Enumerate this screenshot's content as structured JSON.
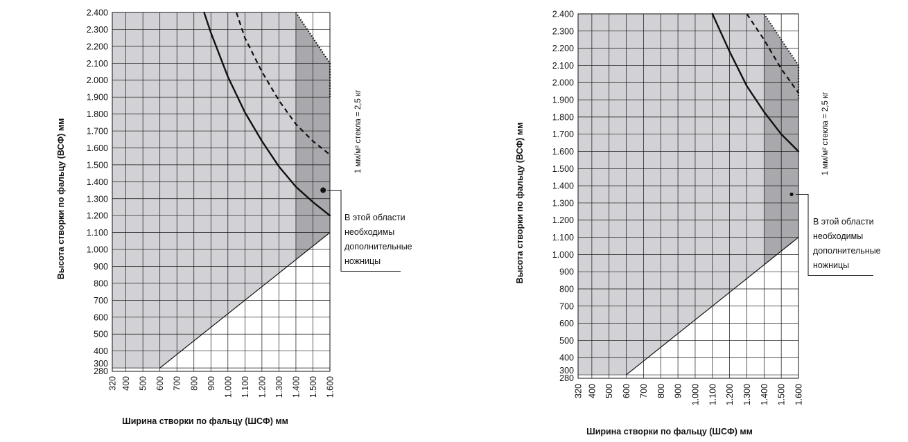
{
  "colors": {
    "allowed_area": "#d2d2d6",
    "extra_scissors_area": "#a9a9ad",
    "grid": "#111111",
    "curve": "#111111"
  },
  "chart_data": [
    {
      "type": "area",
      "title": "",
      "xlabel": "Ширина створки по фальцу (ШСФ) мм",
      "ylabel": "Высота створки по фальцу (ВСФ) мм",
      "x_ticks": [
        320,
        400,
        500,
        600,
        700,
        800,
        900,
        1000,
        1100,
        1200,
        1300,
        1400,
        1500,
        1600
      ],
      "x_tick_labels": [
        "320",
        "400",
        "500",
        "600",
        "700",
        "800",
        "900",
        "1.000",
        "1.100",
        "1.200",
        "1.300",
        "1.400",
        "1.500",
        "1.600"
      ],
      "y_ticks": [
        280,
        300,
        400,
        500,
        600,
        700,
        800,
        900,
        1000,
        1100,
        1200,
        1300,
        1400,
        1500,
        1600,
        1700,
        1800,
        1900,
        2000,
        2100,
        2200,
        2300,
        2400
      ],
      "y_tick_labels": [
        "280",
        "300",
        "400",
        "500",
        "600",
        "700",
        "800",
        "900",
        "1.000",
        "1.100",
        "1.200",
        "1.300",
        "1.400",
        "1.500",
        "1.600",
        "1.700",
        "1.800",
        "1.900",
        "2.000",
        "2.100",
        "2.200",
        "2.300",
        "2.400"
      ],
      "xlim": [
        320,
        1600
      ],
      "ylim": [
        280,
        2400
      ],
      "grid": true,
      "lower_boundary": {
        "x": [
          320,
          600,
          1600
        ],
        "y": [
          300,
          300,
          1100
        ]
      },
      "allowed_area_top": {
        "x": [
          320,
          1400,
          1600
        ],
        "y": [
          2400,
          2400,
          2100
        ]
      },
      "extra_scissors_zone": {
        "x_from": 1400,
        "x_to": 1600
      },
      "series": [
        {
          "style": "solid",
          "x": [
            860,
            900,
            1000,
            1100,
            1200,
            1300,
            1400,
            1500,
            1600
          ],
          "y": [
            2400,
            2280,
            2020,
            1810,
            1640,
            1490,
            1370,
            1280,
            1200
          ]
        },
        {
          "style": "dashed",
          "x": [
            1050,
            1100,
            1200,
            1300,
            1400,
            1500,
            1600
          ],
          "y": [
            2400,
            2250,
            2050,
            1880,
            1740,
            1640,
            1560
          ]
        },
        {
          "style": "dotted",
          "x": [
            1400,
            1600,
            1600
          ],
          "y": [
            2400,
            2100,
            1900
          ]
        }
      ],
      "marker": {
        "x": [
          1560
        ],
        "y": [
          1350
        ]
      },
      "weight_label": "1 мм/м² стекла = 2,5 кг",
      "annotation": [
        "В этой области",
        "необходимы",
        "дополнительные",
        "ножницы"
      ]
    },
    {
      "type": "area",
      "title": "",
      "xlabel": "Ширина створки по фальцу (ШСФ) мм",
      "ylabel": "Высота створки по фальцу (ВСФ) мм",
      "x_ticks": [
        320,
        400,
        500,
        600,
        700,
        800,
        900,
        1000,
        1100,
        1200,
        1300,
        1400,
        1500,
        1600
      ],
      "x_tick_labels": [
        "320",
        "400",
        "500",
        "600",
        "700",
        "800",
        "900",
        "1.000",
        "1.100",
        "1.200",
        "1.300",
        "1.400",
        "1.500",
        "1.600"
      ],
      "y_ticks": [
        280,
        300,
        400,
        500,
        600,
        700,
        800,
        900,
        1000,
        1100,
        1200,
        1300,
        1400,
        1500,
        1600,
        1700,
        1800,
        1900,
        2000,
        2100,
        2200,
        2300,
        2400
      ],
      "y_tick_labels": [
        "280",
        "300",
        "400",
        "500",
        "600",
        "700",
        "800",
        "900",
        "1.000",
        "1.100",
        "1.200",
        "1.300",
        "1.400",
        "1.500",
        "1.600",
        "1.700",
        "1.800",
        "1.900",
        "2.000",
        "2.100",
        "2.200",
        "2.300",
        "2.400"
      ],
      "xlim": [
        320,
        1600
      ],
      "ylim": [
        280,
        2400
      ],
      "grid": true,
      "lower_boundary": {
        "x": [
          320,
          600,
          1600
        ],
        "y": [
          300,
          300,
          1100
        ]
      },
      "allowed_area_top": {
        "x": [
          320,
          1400,
          1600
        ],
        "y": [
          2400,
          2400,
          2100
        ]
      },
      "extra_scissors_zone": {
        "x_from": 1400,
        "x_to": 1600
      },
      "series": [
        {
          "style": "solid",
          "x": [
            1100,
            1200,
            1300,
            1400,
            1500,
            1600
          ],
          "y": [
            2400,
            2180,
            1980,
            1830,
            1700,
            1600
          ]
        },
        {
          "style": "dashed",
          "x": [
            1300,
            1400,
            1500,
            1600
          ],
          "y": [
            2400,
            2250,
            2080,
            1940
          ]
        },
        {
          "style": "dotted",
          "x": [
            1400,
            1600,
            1600
          ],
          "y": [
            2400,
            2100,
            1900
          ]
        }
      ],
      "marker": {
        "x": [
          1560
        ],
        "y": [
          1350
        ]
      },
      "weight_label": "1 мм/м² стекла = 2,5 кг",
      "annotation": [
        "В этой области",
        "необходимы",
        "дополнительные",
        "ножницы"
      ]
    }
  ]
}
